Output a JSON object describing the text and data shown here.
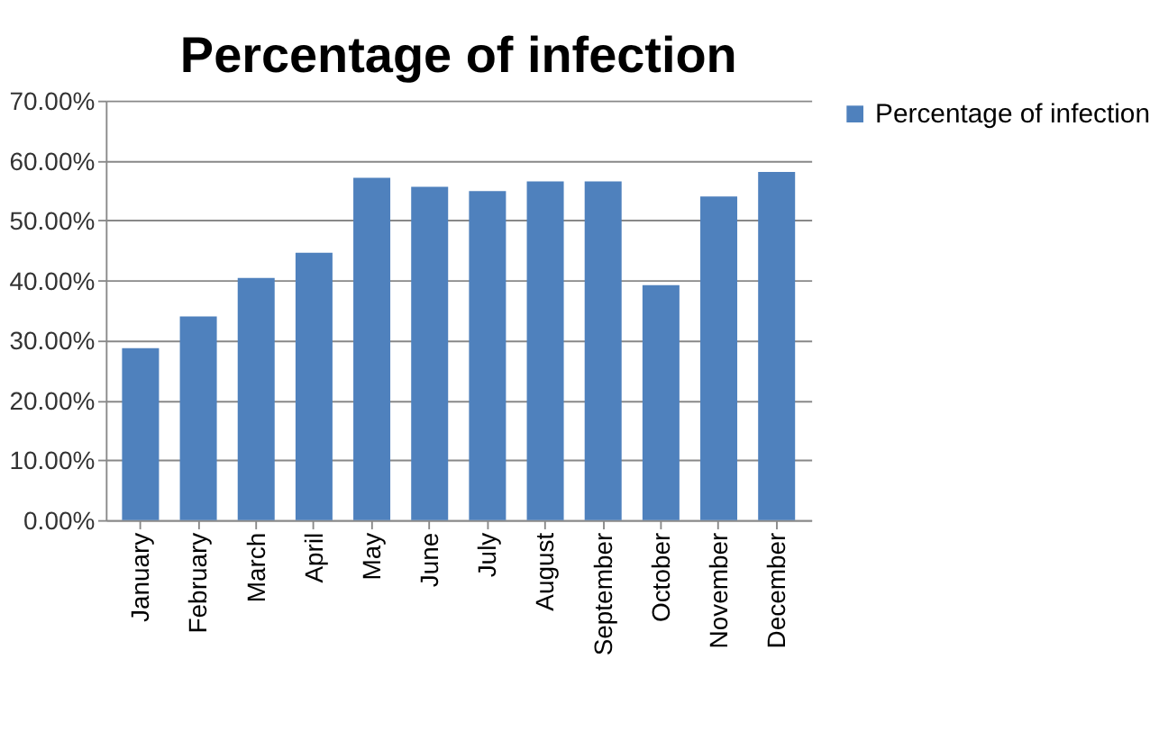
{
  "chart_data": {
    "type": "bar",
    "title": "Percentage of infection",
    "categories": [
      "January",
      "February",
      "March",
      "April",
      "May",
      "June",
      "July",
      "August",
      "September",
      "October",
      "November",
      "December"
    ],
    "series": [
      {
        "name": "Percentage of infection",
        "color": "#4f81bd",
        "values": [
          28.7,
          34.0,
          40.4,
          44.6,
          57.1,
          55.6,
          54.9,
          56.5,
          56.5,
          39.2,
          54.0,
          58.1
        ]
      }
    ],
    "ylim": [
      0,
      70
    ],
    "yticks": [
      {
        "value": 0,
        "label": "0.00%"
      },
      {
        "value": 10,
        "label": "10.00%"
      },
      {
        "value": 20,
        "label": "20.00%"
      },
      {
        "value": 30,
        "label": "30.00%"
      },
      {
        "value": 40,
        "label": "40.00%"
      },
      {
        "value": 50,
        "label": "50.00%"
      },
      {
        "value": 60,
        "label": "60.00%"
      },
      {
        "value": 70,
        "label": "70.00%"
      }
    ],
    "grid": "y",
    "legend": "right"
  }
}
